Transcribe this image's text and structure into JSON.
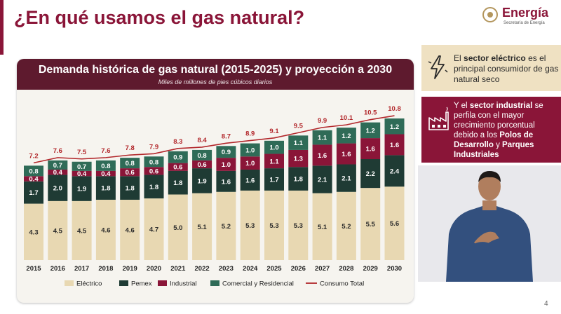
{
  "header": {
    "title": "¿En qué usamos el gas natural?",
    "logo_brand": "Energía",
    "logo_subtitle": "Secretaría de Energía"
  },
  "colors": {
    "accent": "#8a1538",
    "header_bg": "#5e1a2e",
    "electrico": "#e8d8b2",
    "pemex": "#1f3b34",
    "industrial": "#8a1538",
    "comercial": "#2f6b57",
    "consumo": "#b2272b"
  },
  "chart_data": {
    "type": "bar",
    "stacked": true,
    "title": "Demanda histórica de gas natural (2015-2025) y proyección a 2030",
    "subtitle": "Miles de millones de pies cúbicos diarios",
    "categories": [
      "2015",
      "2016",
      "2017",
      "2018",
      "2019",
      "2020",
      "2021",
      "2022",
      "2023",
      "2024",
      "2025",
      "2026",
      "2027",
      "2028",
      "2029",
      "2030"
    ],
    "series": [
      {
        "name": "Eléctrico",
        "color": "#e8d8b2",
        "values": [
          4.3,
          4.5,
          4.5,
          4.6,
          4.6,
          4.7,
          5.0,
          5.1,
          5.2,
          5.3,
          5.3,
          5.3,
          5.1,
          5.2,
          5.5,
          5.6
        ]
      },
      {
        "name": "Pemex",
        "color": "#1f3b34",
        "values": [
          1.7,
          2.0,
          1.9,
          1.8,
          1.8,
          1.8,
          1.8,
          1.9,
          1.6,
          1.6,
          1.7,
          1.8,
          2.1,
          2.1,
          2.2,
          2.4
        ]
      },
      {
        "name": "Industrial",
        "color": "#8a1538",
        "values": [
          0.4,
          0.4,
          0.4,
          0.4,
          0.6,
          0.6,
          0.6,
          0.6,
          1.0,
          1.0,
          1.1,
          1.3,
          1.6,
          1.6,
          1.6,
          1.6
        ]
      },
      {
        "name": "Comercial y Residencial",
        "color": "#2f6b57",
        "values": [
          0.8,
          0.7,
          0.7,
          0.8,
          0.8,
          0.8,
          0.9,
          0.8,
          0.9,
          1.0,
          1.0,
          1.1,
          1.1,
          1.2,
          1.2,
          1.2
        ]
      }
    ],
    "line": {
      "name": "Consumo Total",
      "color": "#b2272b",
      "values": [
        7.2,
        7.6,
        7.5,
        7.6,
        7.8,
        7.9,
        8.3,
        8.4,
        8.7,
        8.9,
        9.1,
        9.5,
        9.9,
        10.1,
        10.5,
        10.8
      ]
    },
    "ylim": [
      0,
      11
    ],
    "grid": false,
    "legend_position": "bottom"
  },
  "info": {
    "electric": {
      "t1": "El ",
      "h1": "sector eléctrico",
      "t2": " es el principal consumidor de gas natural seco"
    },
    "industrial": {
      "t1": "Y el ",
      "h1": "sector industrial",
      "t2": " se perfila con el mayor crecimiento porcentual debido a los ",
      "h2": "Polos de Desarrollo",
      "t3": " y ",
      "h3": "Parques Industriales"
    }
  },
  "page_number": "4"
}
